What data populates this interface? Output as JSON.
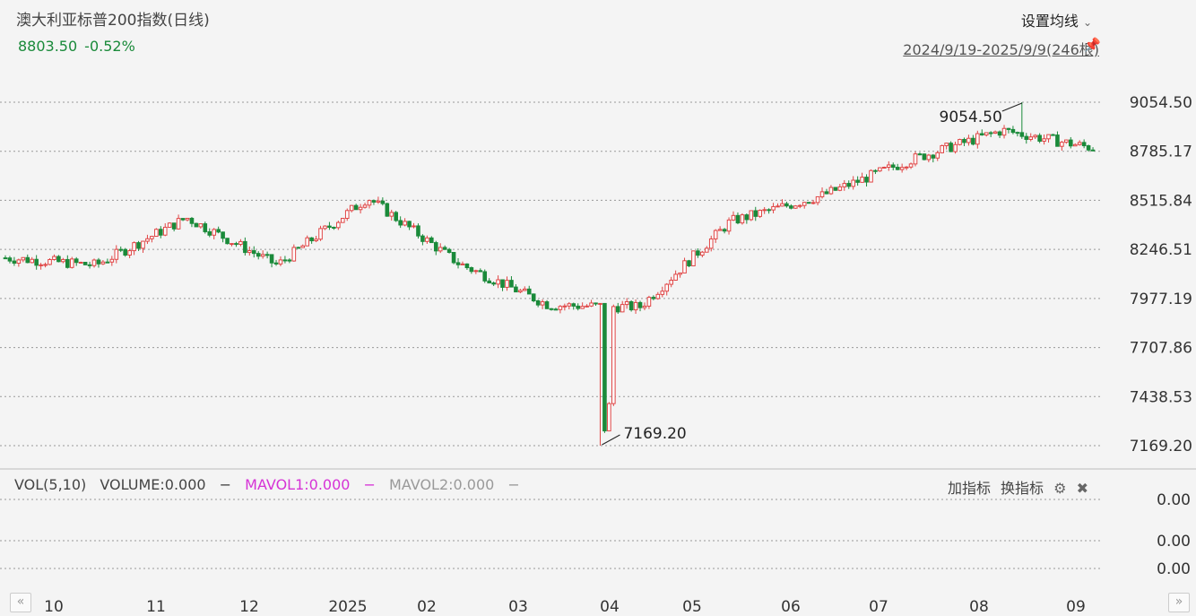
{
  "header": {
    "title": "澳大利亚标普200指数(日线)",
    "last_price": "8803.50",
    "change_pct": "-0.52%",
    "ma_setting_label": "设置均线",
    "date_range": "2024/9/19-2025/9/9(246根)"
  },
  "colors": {
    "up": "#e04545",
    "down": "#1a8a3a",
    "mavol1": "#d633d6",
    "mavol2": "#999999",
    "grid": "#999999"
  },
  "icons": {
    "dropdown": "chevron-down-icon",
    "pin": "pin-icon",
    "settings": "gear-icon",
    "close": "close-circle-icon",
    "nav_left": "double-chevron-left-icon",
    "nav_right": "double-chevron-right-icon"
  },
  "volume_panel": {
    "legend_vol": "VOL(5,10)",
    "legend_volume": "VOLUME:0.000",
    "legend_mavol1": "MAVOL1:0.000",
    "legend_mavol2": "MAVOL2:0.000",
    "add_indicator": "加指标",
    "switch_indicator": "换指标",
    "y_ticks": [
      "0.00",
      "0.00",
      "0.00"
    ]
  },
  "chart_data": {
    "type": "candlestick",
    "title": "澳大利亚标普200指数(日线)",
    "y_ticks": [
      9054.5,
      8785.17,
      8515.84,
      8246.51,
      7977.19,
      7707.86,
      7438.53,
      7169.2
    ],
    "y_tick_labels": [
      "9054.50",
      "8785.17",
      "8515.84",
      "8246.51",
      "7977.19",
      "7707.86",
      "7438.53",
      "7169.20"
    ],
    "ylim": [
      7169.2,
      9054.5
    ],
    "x_tick_labels": [
      "10",
      "11",
      "12",
      "2025",
      "02",
      "03",
      "04",
      "05",
      "06",
      "07",
      "08",
      "09"
    ],
    "annotations": [
      {
        "label": "9054.50",
        "kind": "high",
        "date": "2025-08"
      },
      {
        "label": "7169.20",
        "kind": "low",
        "date": "2025-04"
      }
    ],
    "approx_monthly_closes": [
      {
        "month": "2024-09",
        "close": 8200
      },
      {
        "month": "2024-10",
        "close": 8160
      },
      {
        "month": "2024-11",
        "close": 8420
      },
      {
        "month": "2024-12",
        "close": 8160
      },
      {
        "month": "2025-01",
        "close": 8530
      },
      {
        "month": "2025-02",
        "close": 8170
      },
      {
        "month": "2025-03",
        "close": 7940
      },
      {
        "month": "2025-04",
        "close": 7930
      },
      {
        "month": "2025-05",
        "close": 8400
      },
      {
        "month": "2025-06",
        "close": 8540
      },
      {
        "month": "2025-07",
        "close": 8740
      },
      {
        "month": "2025-08",
        "close": 8900
      },
      {
        "month": "2025-09",
        "close": 8803.5
      }
    ]
  }
}
